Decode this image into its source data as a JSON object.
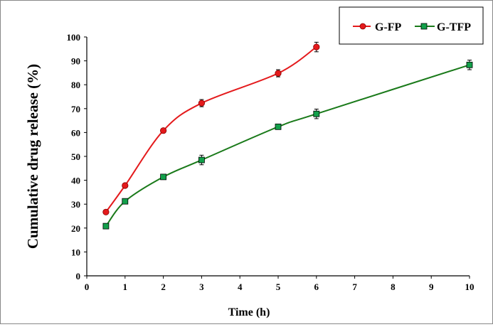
{
  "chart_data": {
    "type": "line",
    "title": "",
    "xlabel": "Time (h)",
    "ylabel": "Cumulative drug release (%)",
    "xlim": [
      0,
      10
    ],
    "ylim": [
      0,
      100
    ],
    "xticks": [
      0,
      1,
      2,
      3,
      4,
      5,
      6,
      7,
      8,
      9,
      10
    ],
    "yticks": [
      0,
      10,
      20,
      30,
      40,
      50,
      60,
      70,
      80,
      90,
      100
    ],
    "grid": false,
    "legend_position": "top-right",
    "series": [
      {
        "name": "G-FP",
        "color": "#e41a1c",
        "marker": "circle",
        "smooth": true,
        "x": [
          0.5,
          1,
          2,
          3,
          5,
          6
        ],
        "y": [
          26.7,
          37.8,
          60.8,
          72.3,
          84.8,
          95.8
        ],
        "err": [
          0.8,
          0.8,
          0.8,
          1.5,
          1.5,
          2.0
        ]
      },
      {
        "name": "G-TFP",
        "color": "#1a7a1a",
        "marker_fill": "#12a04a",
        "marker": "square",
        "smooth": true,
        "x": [
          0.5,
          1,
          2,
          3,
          5,
          6,
          10
        ],
        "y": [
          20.8,
          31.2,
          41.4,
          48.5,
          62.4,
          67.8,
          88.3
        ],
        "err": [
          0.8,
          0.8,
          0.8,
          2.0,
          1.0,
          2.0,
          2.0
        ]
      }
    ]
  }
}
